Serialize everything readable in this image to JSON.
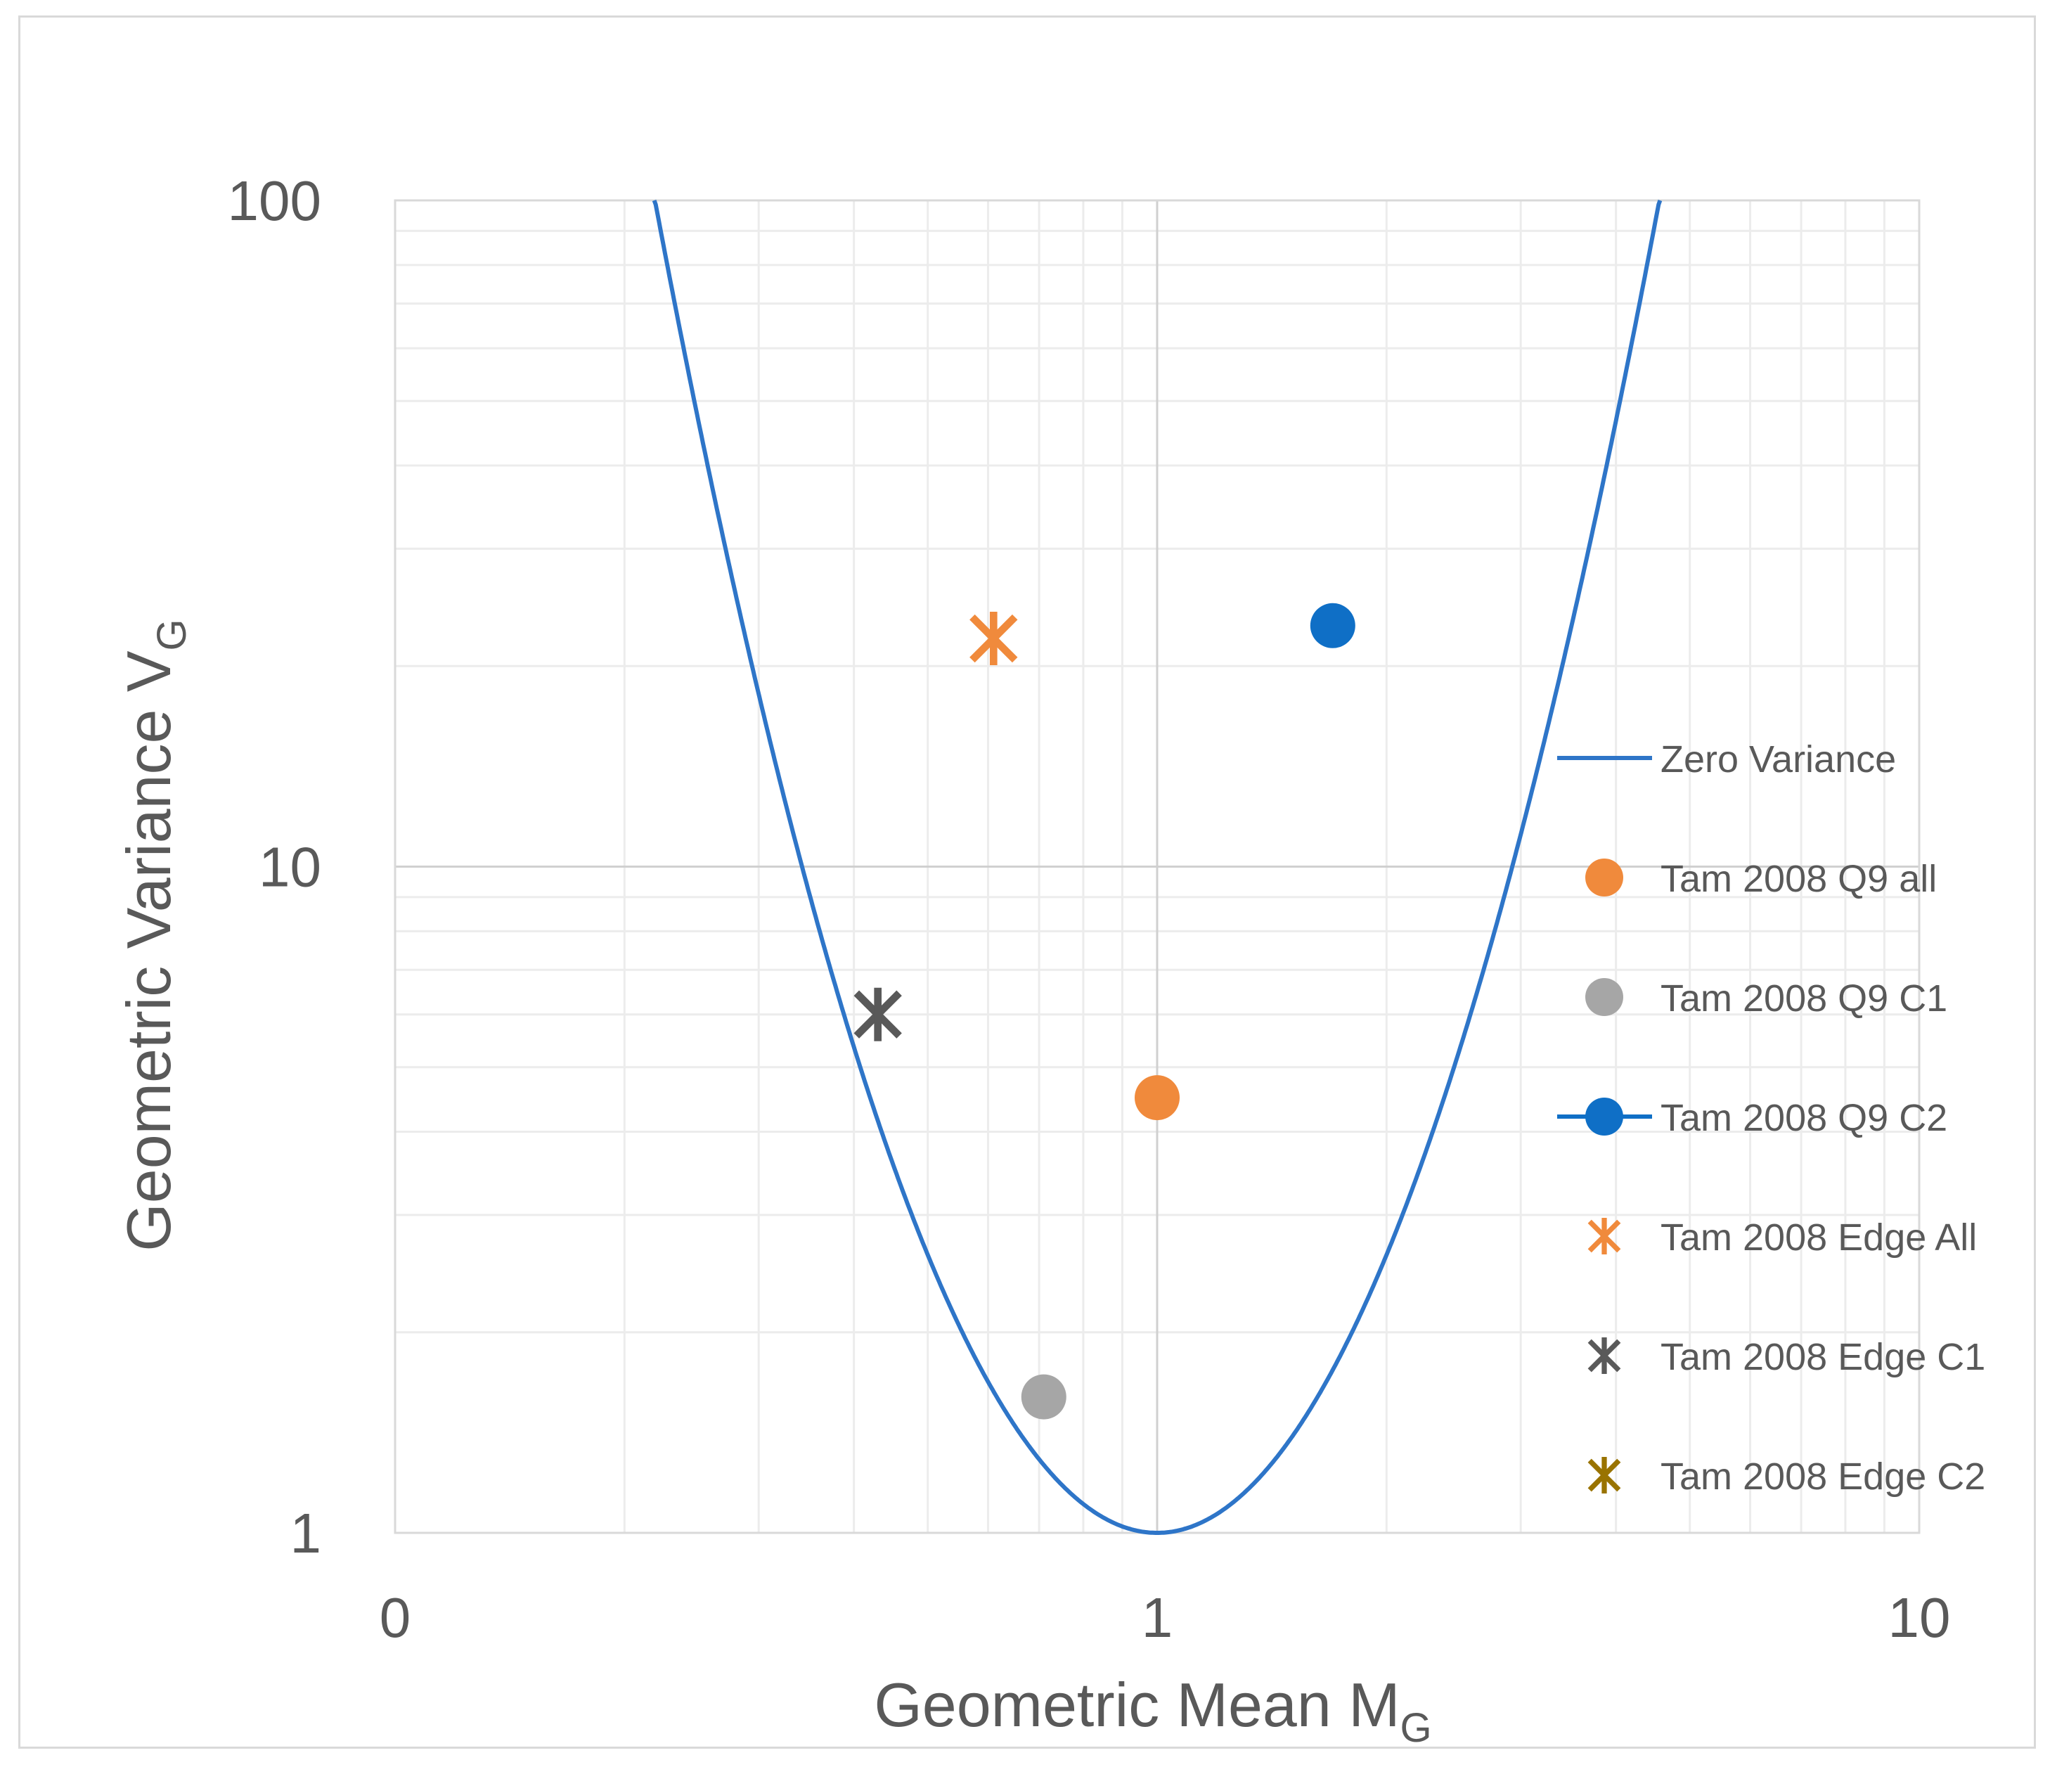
{
  "chart_data": {
    "type": "scatter",
    "x_scale": "log",
    "y_scale": "log",
    "xlabel": "Geometric Mean M",
    "xlabel_sub": "G",
    "ylabel": "Geometric Variance V",
    "ylabel_sub": "G",
    "xlim": [
      0.1,
      10
    ],
    "ylim": [
      1,
      100
    ],
    "x_ticks": [
      {
        "value": 0.1,
        "label": "0"
      },
      {
        "value": 1,
        "label": "1"
      },
      {
        "value": 10,
        "label": "10"
      }
    ],
    "y_ticks": [
      {
        "value": 1,
        "label": "1"
      },
      {
        "value": 10,
        "label": "10"
      },
      {
        "value": 100,
        "label": "100"
      }
    ],
    "grid": true,
    "legend_position": "right",
    "curve": {
      "name": "Zero Variance",
      "color": "#2e75c8",
      "description": "V = exp(2*(ln M)^2)"
    },
    "series": [
      {
        "name": "Tam 2008 Q9 all",
        "marker": "circle",
        "color": "#f08a3c",
        "points": [
          [
            1.0,
            4.5
          ]
        ]
      },
      {
        "name": "Tam 2008 Q9 C1",
        "marker": "circle",
        "color": "#a6a6a6",
        "points": [
          [
            0.71,
            1.6
          ]
        ]
      },
      {
        "name": "Tam 2008 Q9 C2",
        "marker": "circle",
        "color": "#0f6fc6",
        "points": [
          [
            1.7,
            23
          ]
        ]
      },
      {
        "name": "Tam 2008 Edge All",
        "marker": "asterisk",
        "color": "#f08a3c",
        "points": [
          [
            0.61,
            22
          ]
        ]
      },
      {
        "name": "Tam 2008 Edge C1",
        "marker": "asterisk",
        "color": "#595959",
        "points": [
          [
            0.43,
            6
          ]
        ]
      },
      {
        "name": "Tam 2008 Edge C2",
        "marker": "asterisk",
        "color": "#997300",
        "points": []
      }
    ]
  }
}
